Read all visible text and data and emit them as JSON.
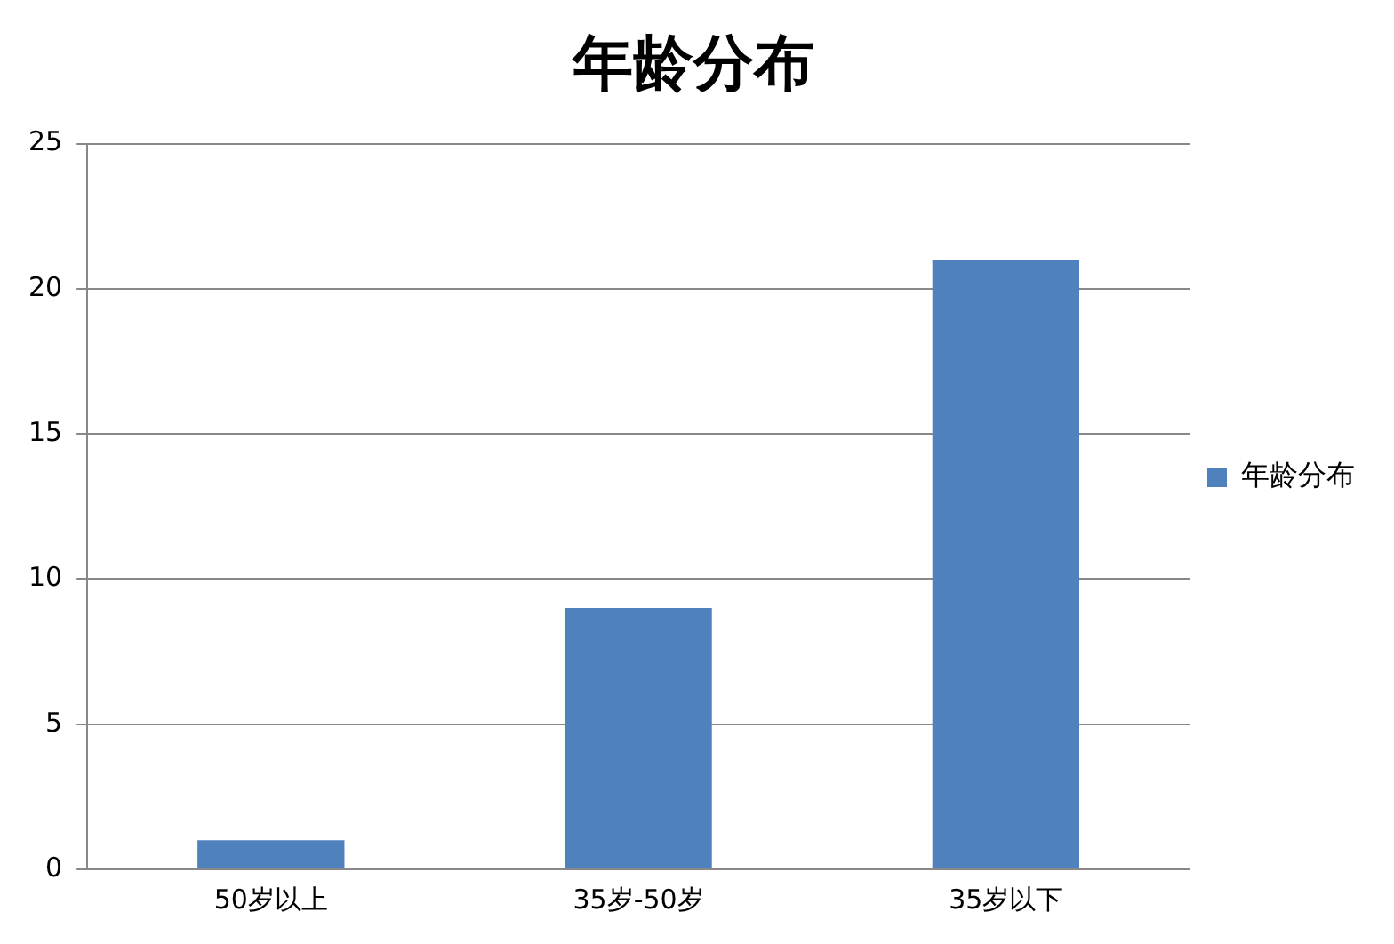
{
  "chart_data": {
    "type": "bar",
    "title": "年龄分布",
    "categories": [
      "50岁以上",
      "35岁-50岁",
      "35岁以下"
    ],
    "series": [
      {
        "name": "年龄分布",
        "color": "#4f81bd",
        "values": [
          1,
          9,
          21
        ]
      }
    ],
    "ylim": [
      0,
      25
    ],
    "yticks": [
      0,
      5,
      10,
      15,
      20,
      25
    ],
    "grid": "y",
    "legend": "right"
  }
}
